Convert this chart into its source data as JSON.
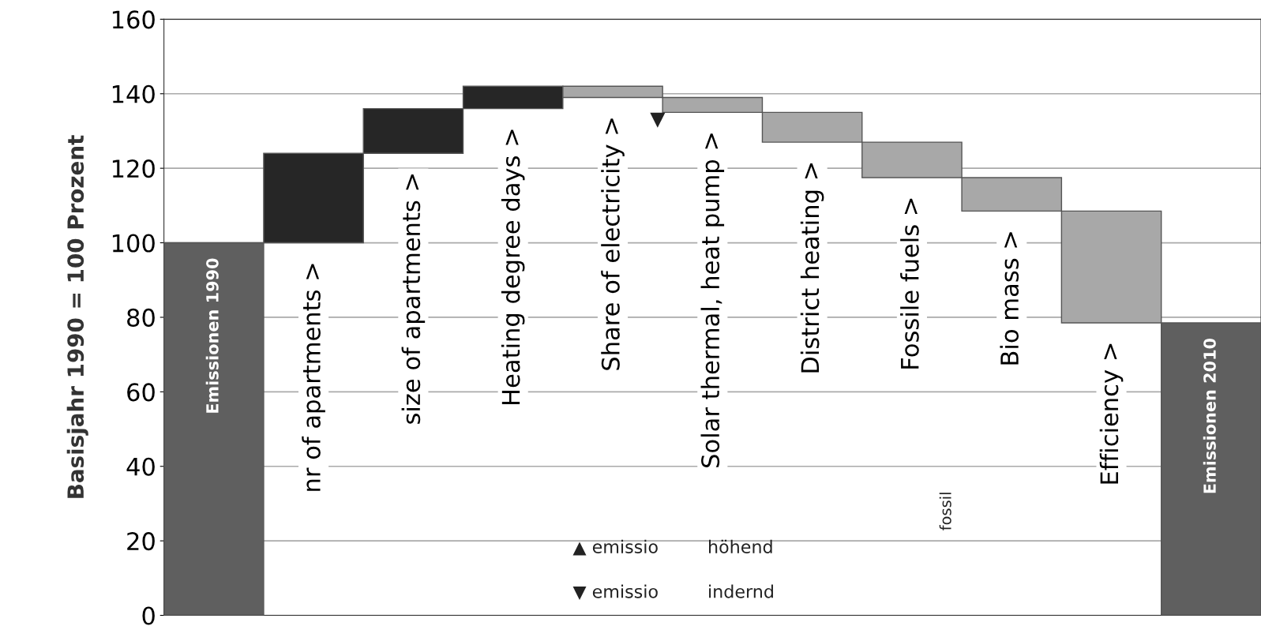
{
  "chart_data": {
    "type": "bar",
    "ylabel": "Basisjahr 1990 = 100 Prozent",
    "categories": [
      "Emissionen 1990",
      "nr of apartments >",
      "size of apartments >",
      "Heating degree days >",
      "Share of electricity >",
      "Solar thermal, heat pump >",
      "District heating >",
      "Fossile fuels >",
      "Bio mass >",
      "Efficiency >",
      "Emissionen 2010"
    ],
    "values": [
      100,
      24,
      12,
      6,
      -3,
      -4,
      -8,
      -9.5,
      -9,
      -30,
      78.5
    ],
    "base": [
      0,
      100,
      124,
      136,
      142,
      139,
      135,
      127,
      117.5,
      108.5,
      0
    ],
    "colors": [
      "#5f5f5f",
      "#262626",
      "#262626",
      "#262626",
      "#a8a8a8",
      "#a8a8a8",
      "#a8a8a8",
      "#a8a8a8",
      "#a8a8a8",
      "#a8a8a8",
      "#5f5f5f"
    ],
    "ylim": [
      0,
      160
    ],
    "yticks": [
      0,
      20,
      40,
      60,
      80,
      100,
      120,
      140,
      160
    ],
    "grid": "y",
    "tick_labels": "y",
    "annotations": [
      "▼",
      "fossil",
      "▲ emissio",
      "höhend",
      "▼ emissio",
      "indernd"
    ]
  }
}
